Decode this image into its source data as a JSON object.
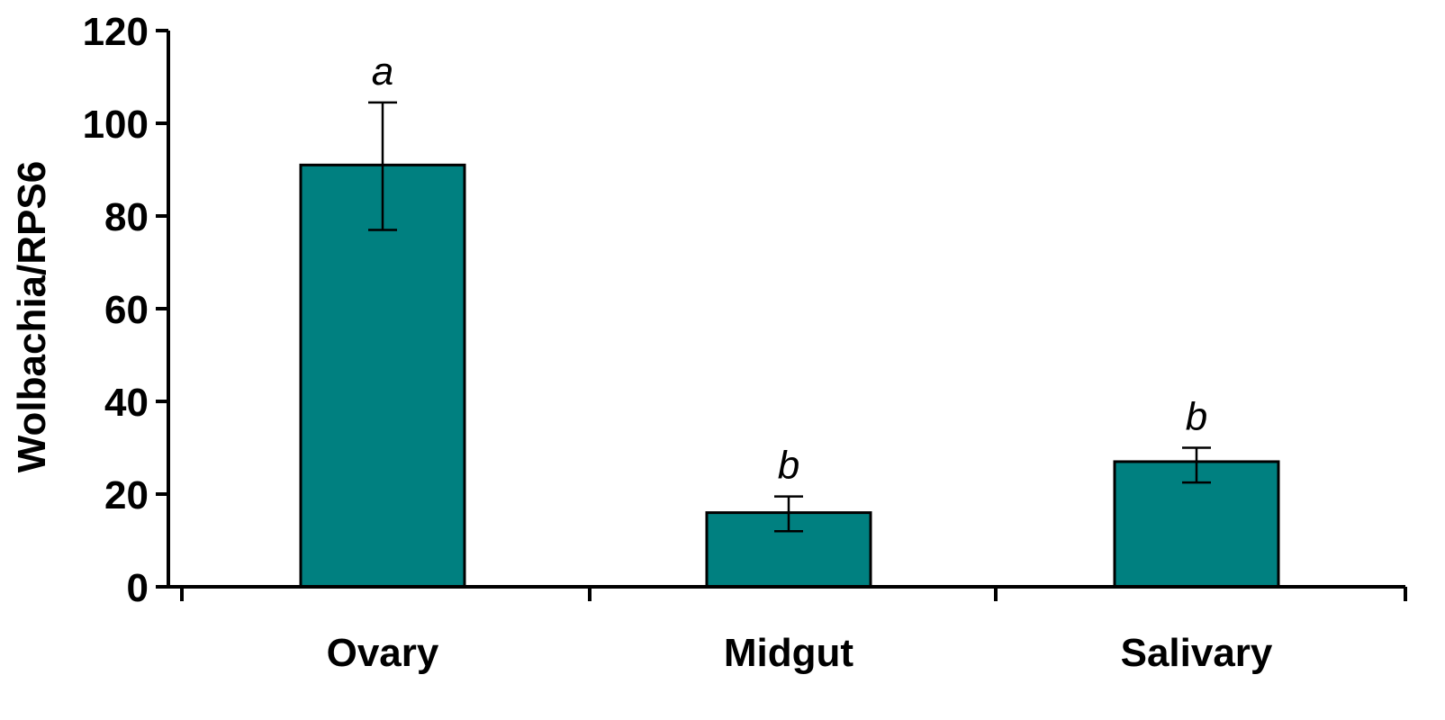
{
  "chart_data": {
    "type": "bar",
    "categories": [
      "Ovary",
      "Midgut",
      "Salivary"
    ],
    "values": [
      91,
      16,
      27
    ],
    "errors": [
      {
        "low": 77,
        "high": 104.5
      },
      {
        "low": 12,
        "high": 19.5
      },
      {
        "low": 22.5,
        "high": 30
      }
    ],
    "significance_labels": [
      "a",
      "b",
      "b"
    ],
    "ylabel": "Wolbachia/RPS6",
    "xlabel": "",
    "ylim": [
      0,
      120
    ],
    "yticks": [
      0,
      20,
      40,
      60,
      80,
      100,
      120
    ],
    "bar_color": "#008080",
    "grid": false,
    "legend": "none"
  }
}
